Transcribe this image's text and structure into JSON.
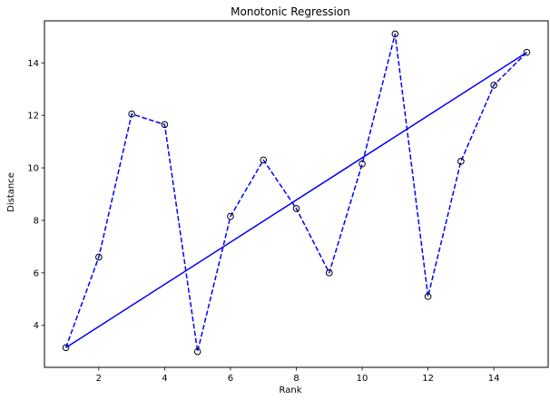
{
  "chart_data": {
    "type": "line",
    "title": "Monotonic Regression",
    "xlabel": "Rank",
    "ylabel": "Distance",
    "xlim": [
      0.35,
      15.65
    ],
    "ylim": [
      2.4,
      15.6
    ],
    "grid": false,
    "x_ticks": [
      2,
      4,
      6,
      8,
      10,
      12,
      14
    ],
    "y_ticks": [
      4,
      6,
      8,
      10,
      12,
      14
    ],
    "series": [
      {
        "style": "dashed line with circle markers",
        "color": "#0000ff",
        "marker_color": "#000000",
        "x": [
          1,
          2,
          3,
          4,
          5,
          6,
          7,
          8,
          9,
          10,
          11,
          12,
          13,
          14,
          15
        ],
        "y": [
          3.15,
          6.6,
          12.05,
          11.65,
          3.0,
          8.15,
          10.3,
          8.45,
          6.0,
          10.15,
          15.1,
          5.1,
          10.25,
          13.15,
          14.4
        ]
      },
      {
        "style": "solid line",
        "color": "#0000ff",
        "x": [
          1,
          15
        ],
        "y": [
          3.15,
          14.4
        ]
      }
    ]
  }
}
